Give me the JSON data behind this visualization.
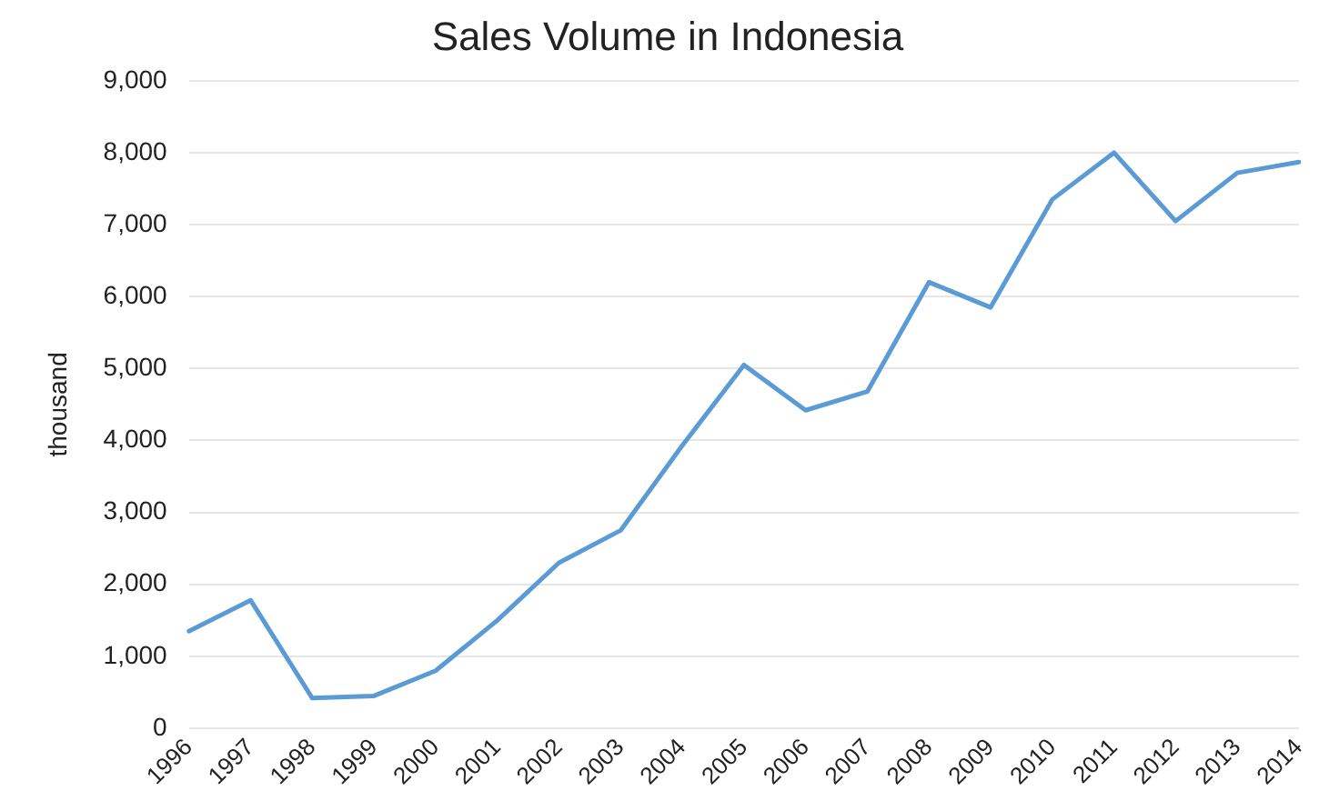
{
  "chart_data": {
    "type": "line",
    "title": "Sales Volume in Indonesia",
    "ylabel": "thousand",
    "categories": [
      "1996",
      "1997",
      "1998",
      "1999",
      "2000",
      "2001",
      "2002",
      "2003",
      "2004",
      "2005",
      "2006",
      "2007",
      "2008",
      "2009",
      "2010",
      "2011",
      "2012",
      "2013",
      "2014"
    ],
    "series": [
      {
        "color": "#5b9bd5",
        "values": [
          1350,
          1780,
          420,
          450,
          800,
          1500,
          2300,
          2750,
          3930,
          5050,
          4420,
          4680,
          6200,
          5850,
          7350,
          8000,
          7050,
          7720,
          7870
        ]
      }
    ],
    "ylim": [
      0,
      9000
    ],
    "yticks": [
      0,
      {
        "value": 1000,
        "label": "1,000"
      },
      {
        "value": 2000,
        "label": "2,000"
      },
      {
        "value": 3000,
        "label": "3,000"
      },
      {
        "value": 4000,
        "label": "4,000"
      },
      {
        "value": 5000,
        "label": "5,000"
      },
      {
        "value": 6000,
        "label": "6,000"
      },
      {
        "value": 7000,
        "label": "7,000"
      },
      {
        "value": 8000,
        "label": "8,000"
      },
      {
        "value": 9000,
        "label": "9,000"
      }
    ],
    "grid": "y",
    "legend": false,
    "marker": "none",
    "line_style": "solid"
  }
}
